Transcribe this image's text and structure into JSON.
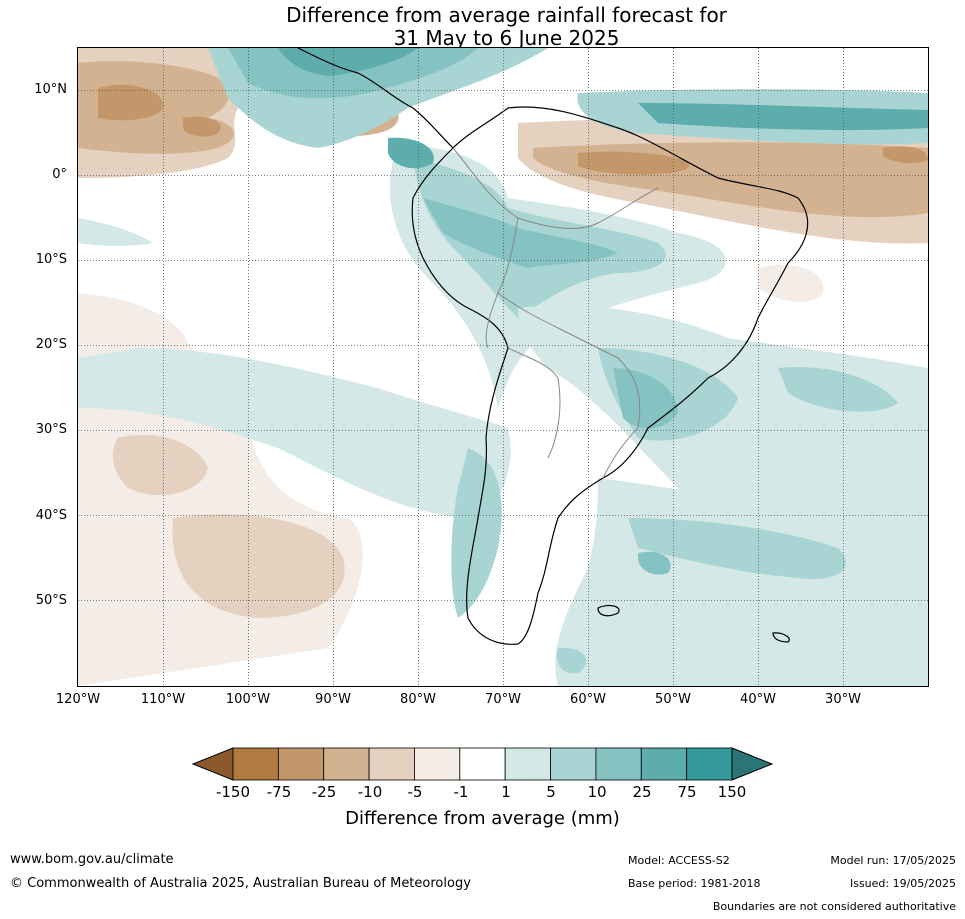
{
  "map": {
    "title_line1": "Difference from average rainfall forecast for",
    "title_line2": "31 May to 6 June 2025",
    "lat_labels": [
      "10°N",
      "0°",
      "10°S",
      "20°S",
      "30°S",
      "40°S",
      "50°S"
    ],
    "lon_labels": [
      "120°W",
      "110°W",
      "100°W",
      "90°W",
      "80°W",
      "70°W",
      "60°W",
      "50°W",
      "40°W",
      "30°W"
    ],
    "region": "South America",
    "extent": {
      "lon_min": -120,
      "lon_max": -20,
      "lat_min": -60,
      "lat_max": 15
    }
  },
  "colorbar": {
    "label": "Difference from average (mm)",
    "ticks": [
      "-150",
      "-75",
      "-25",
      "-10",
      "-5",
      "-1",
      "1",
      "5",
      "10",
      "25",
      "75",
      "150"
    ],
    "low_extend_color": "#8a5a2c",
    "high_extend_color": "#2b7574",
    "colors": [
      "#b07a41",
      "#c4976a",
      "#d3b291",
      "#e5d1bf",
      "#f4ece6",
      "#ffffff",
      "#d4e9e7",
      "#a8d5d3",
      "#84c3c1",
      "#5cadab",
      "#33999a"
    ]
  },
  "footer": {
    "url": "www.bom.gov.au/climate",
    "copyright": "© Commonwealth of Australia 2025, Australian Bureau of Meteorology",
    "model": "Model: ACCESS-S2",
    "base_period": "Base period: 1981-2018",
    "model_run": "Model run: 17/05/2025",
    "issued": "Issued: 19/05/2025",
    "disclaimer": "Boundaries are not considered authoritative"
  }
}
